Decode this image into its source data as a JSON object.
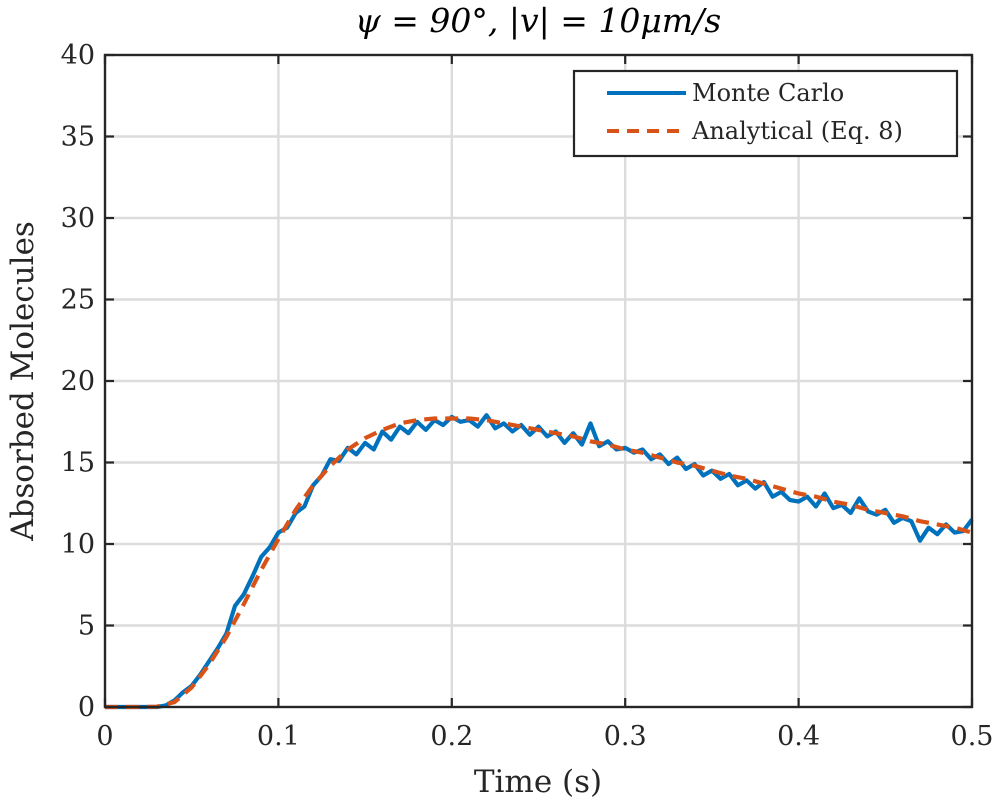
{
  "chart_data": {
    "type": "line",
    "title": "ψ = 90°, |v| = 10μm/s",
    "xlabel": "Time (s)",
    "ylabel": "Absorbed Molecules",
    "xlim": [
      0,
      0.5
    ],
    "ylim": [
      0,
      40
    ],
    "xticks": [
      0,
      0.1,
      0.2,
      0.3,
      0.4,
      0.5
    ],
    "xtick_labels": [
      "0",
      "0.1",
      "0.2",
      "0.3",
      "0.4",
      "0.5"
    ],
    "yticks": [
      0,
      5,
      10,
      15,
      20,
      25,
      30,
      35,
      40
    ],
    "ytick_labels": [
      "0",
      "5",
      "10",
      "15",
      "20",
      "25",
      "30",
      "35",
      "40"
    ],
    "grid": true,
    "legend_position": "top-right",
    "series": [
      {
        "name": "Monte Carlo",
        "color": "#0072BD",
        "style": "solid",
        "x": [
          0,
          0.005,
          0.01,
          0.015,
          0.02,
          0.025,
          0.03,
          0.035,
          0.04,
          0.045,
          0.05,
          0.055,
          0.06,
          0.065,
          0.07,
          0.075,
          0.08,
          0.085,
          0.09,
          0.095,
          0.1,
          0.105,
          0.11,
          0.115,
          0.12,
          0.125,
          0.13,
          0.135,
          0.14,
          0.145,
          0.15,
          0.155,
          0.16,
          0.165,
          0.17,
          0.175,
          0.18,
          0.185,
          0.19,
          0.195,
          0.2,
          0.205,
          0.21,
          0.215,
          0.22,
          0.225,
          0.23,
          0.235,
          0.24,
          0.245,
          0.25,
          0.255,
          0.26,
          0.265,
          0.27,
          0.275,
          0.28,
          0.285,
          0.29,
          0.295,
          0.3,
          0.305,
          0.31,
          0.315,
          0.32,
          0.325,
          0.33,
          0.335,
          0.34,
          0.345,
          0.35,
          0.355,
          0.36,
          0.365,
          0.37,
          0.375,
          0.38,
          0.385,
          0.39,
          0.395,
          0.4,
          0.405,
          0.41,
          0.415,
          0.42,
          0.425,
          0.43,
          0.435,
          0.44,
          0.445,
          0.45,
          0.455,
          0.46,
          0.465,
          0.47,
          0.475,
          0.48,
          0.485,
          0.49,
          0.495,
          0.5
        ],
        "values": [
          0,
          0,
          0,
          0,
          0,
          0,
          0,
          0.1,
          0.4,
          0.9,
          1.3,
          2.0,
          2.8,
          3.6,
          4.5,
          6.2,
          6.9,
          8.0,
          9.2,
          9.8,
          10.7,
          11.0,
          11.9,
          12.3,
          13.6,
          14.2,
          15.2,
          15.1,
          15.9,
          15.5,
          16.2,
          15.8,
          16.9,
          16.4,
          17.2,
          16.8,
          17.5,
          17.0,
          17.6,
          17.3,
          17.8,
          17.5,
          17.6,
          17.2,
          17.9,
          17.1,
          17.4,
          16.9,
          17.3,
          16.7,
          17.2,
          16.6,
          16.9,
          16.2,
          16.8,
          16.1,
          17.4,
          16.0,
          16.3,
          15.8,
          15.9,
          15.6,
          15.8,
          15.2,
          15.5,
          14.9,
          15.3,
          14.6,
          14.9,
          14.2,
          14.5,
          14.0,
          14.3,
          13.6,
          13.9,
          13.4,
          13.8,
          12.9,
          13.2,
          12.7,
          12.6,
          12.9,
          12.3,
          13.1,
          12.2,
          12.4,
          11.9,
          12.8,
          12.0,
          11.8,
          12.1,
          11.3,
          11.6,
          11.4,
          10.2,
          11.0,
          10.6,
          11.2,
          10.7,
          10.8,
          11.5
        ]
      },
      {
        "name": "Analytical (Eq. 8)",
        "color": "#D95319",
        "style": "dashed",
        "x": [
          0,
          0.01,
          0.02,
          0.03,
          0.04,
          0.05,
          0.06,
          0.07,
          0.08,
          0.09,
          0.1,
          0.11,
          0.12,
          0.13,
          0.14,
          0.15,
          0.16,
          0.17,
          0.18,
          0.19,
          0.2,
          0.21,
          0.22,
          0.23,
          0.24,
          0.25,
          0.26,
          0.27,
          0.28,
          0.29,
          0.3,
          0.31,
          0.32,
          0.33,
          0.34,
          0.35,
          0.36,
          0.37,
          0.38,
          0.39,
          0.4,
          0.41,
          0.42,
          0.43,
          0.44,
          0.45,
          0.46,
          0.47,
          0.48,
          0.49,
          0.5
        ],
        "values": [
          0,
          0,
          0,
          0.02,
          0.3,
          1.2,
          2.6,
          4.3,
          6.3,
          8.4,
          10.3,
          12.1,
          13.6,
          14.8,
          15.8,
          16.5,
          17.0,
          17.4,
          17.6,
          17.7,
          17.7,
          17.7,
          17.6,
          17.4,
          17.2,
          17.0,
          16.8,
          16.6,
          16.3,
          16.1,
          15.8,
          15.6,
          15.3,
          15.0,
          14.8,
          14.5,
          14.2,
          14.0,
          13.7,
          13.4,
          13.1,
          12.9,
          12.6,
          12.4,
          12.1,
          11.9,
          11.7,
          11.4,
          11.2,
          11.0,
          10.7
        ]
      }
    ]
  }
}
